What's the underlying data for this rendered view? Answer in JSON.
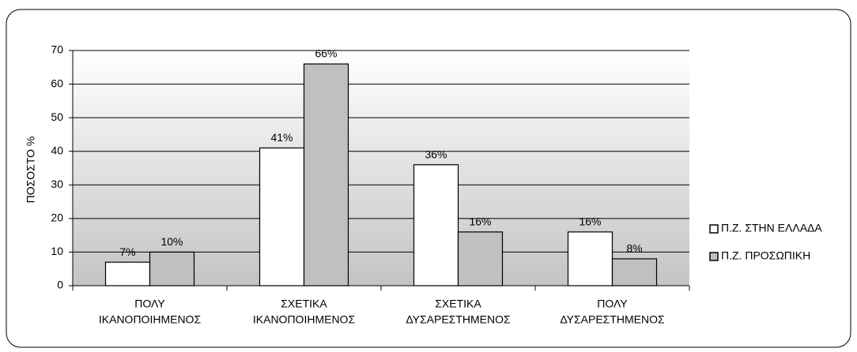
{
  "chart_data": {
    "type": "bar",
    "y_label": "ΠΟΣΟΣΤΟ %",
    "categories": [
      [
        "ΠΟΛΥ",
        "ΙΚΑΝΟΠΟΙΗΜΕΝΟΣ"
      ],
      [
        "ΣΧΕΤΙΚΑ",
        "ΙΚΑΝΟΠΟΙΗΜΕΝΟΣ"
      ],
      [
        "ΣΧΕΤΙΚΑ",
        "ΔΥΣΑΡΕΣΤΗΜΕΝΟΣ"
      ],
      [
        "ΠΟΛΥ",
        "ΔΥΣΑΡΕΣΤΗΜΕΝΟΣ"
      ]
    ],
    "series": [
      {
        "name": "Π.Ζ. ΣΤΗΝ ΕΛΛΑΔΑ",
        "color": "#ffffff",
        "values": [
          7,
          41,
          36,
          16
        ],
        "value_labels": [
          "7%",
          "41%",
          "36%",
          "16%"
        ]
      },
      {
        "name": "Π.Ζ. ΠΡΟΣΩΠΙΚΗ",
        "color": "#c0c0c0",
        "values": [
          10,
          66,
          16,
          8
        ],
        "value_labels": [
          "10%",
          "66%",
          "16%",
          "8%"
        ]
      }
    ],
    "ylim": [
      0,
      70
    ],
    "yticks": [
      0,
      10,
      20,
      30,
      40,
      50,
      60,
      70
    ],
    "grid": true
  }
}
